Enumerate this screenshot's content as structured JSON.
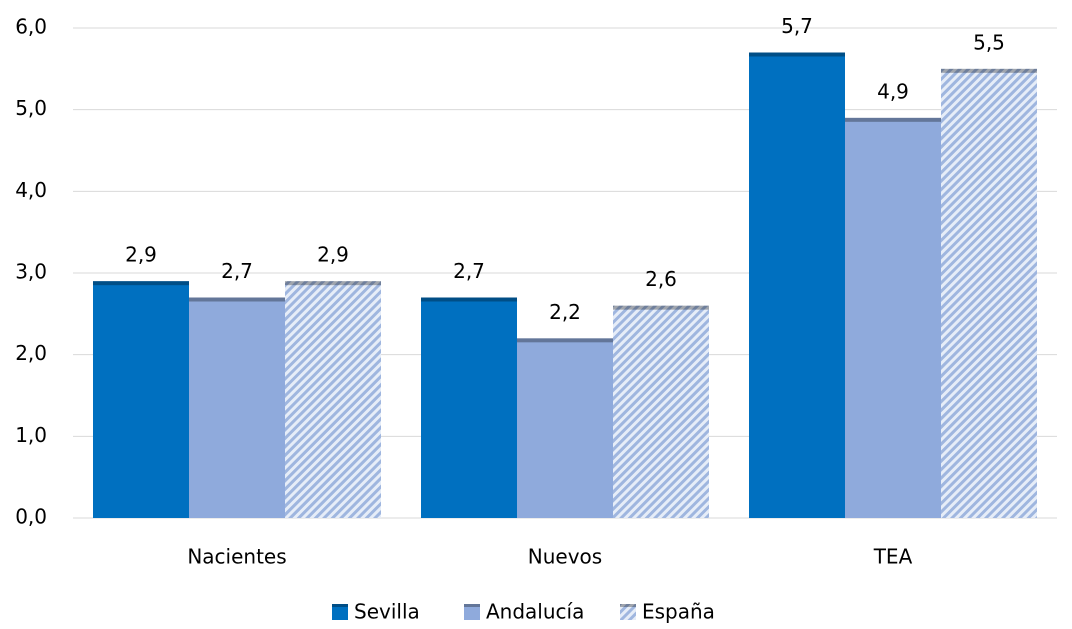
{
  "chart_data": {
    "type": "bar",
    "categories": [
      "Nacientes",
      "Nuevos",
      "TEA"
    ],
    "series": [
      {
        "name": "Sevilla",
        "color": "#0070c0",
        "values": [
          2.9,
          2.7,
          5.7
        ],
        "value_labels": [
          "2,9",
          "2,7",
          "5,7"
        ]
      },
      {
        "name": "Andalucía",
        "color": "#8faadc",
        "values": [
          2.7,
          2.2,
          4.9
        ],
        "value_labels": [
          "2,7",
          "2,2",
          "4,9"
        ]
      },
      {
        "name": "España",
        "color": "#b4c7e7",
        "pattern": "diagonal",
        "values": [
          2.9,
          2.6,
          5.5
        ],
        "value_labels": [
          "2,9",
          "2,6",
          "5,5"
        ]
      }
    ],
    "ylim": [
      0,
      6
    ],
    "yticks": [
      {
        "value": 0,
        "label": "0,0"
      },
      {
        "value": 1,
        "label": "1,0"
      },
      {
        "value": 2,
        "label": "2,0"
      },
      {
        "value": 3,
        "label": "3,0"
      },
      {
        "value": 4,
        "label": "4,0"
      },
      {
        "value": 5,
        "label": "5,0"
      },
      {
        "value": 6,
        "label": "6,0"
      }
    ],
    "grid": true,
    "legend": "bottom"
  }
}
